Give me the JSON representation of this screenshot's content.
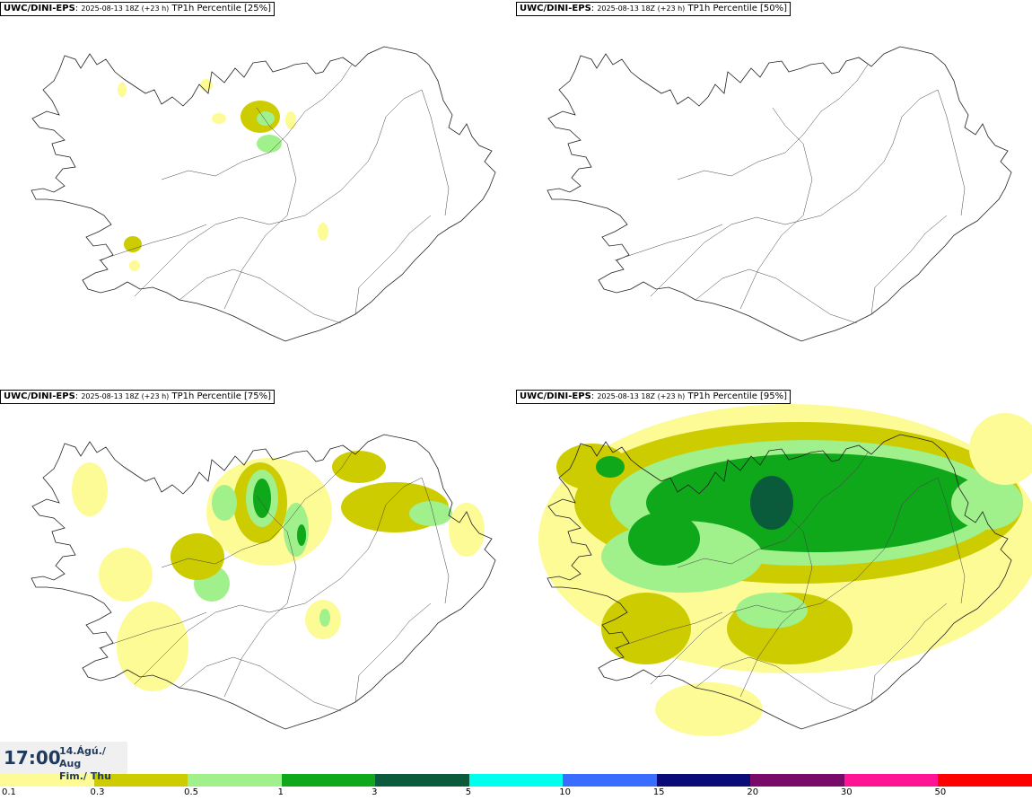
{
  "panels": [
    {
      "source": "UWC/DINI-EPS",
      "run": "2025-08-13 18Z (+23 h)",
      "field": "TP1h Percentile [25%]",
      "level": 1
    },
    {
      "source": "UWC/DINI-EPS",
      "run": "2025-08-13 18Z (+23 h)",
      "field": "TP1h Percentile [50%]",
      "level": 2
    },
    {
      "source": "UWC/DINI-EPS",
      "run": "2025-08-13 18Z (+23 h)",
      "field": "TP1h Percentile [75%]",
      "level": 3
    },
    {
      "source": "UWC/DINI-EPS",
      "run": "2025-08-13 18Z (+23 h)",
      "field": "TP1h Percentile [95%]",
      "level": 4
    }
  ],
  "valid_time": {
    "time": "17:00",
    "date": "14.Ágú./ Aug",
    "day": "Fim./ Thu"
  },
  "legend": {
    "colors": [
      "#fdfb96",
      "#cccc00",
      "#a0f08c",
      "#0ea81a",
      "#0a5a3c",
      "#00ffee",
      "#3a6cff",
      "#0a0a78",
      "#7a0a6a",
      "#ff1493",
      "#ff0000"
    ],
    "ticks": [
      "0.1",
      "0.3",
      "0.5",
      "1",
      "3",
      "5",
      "10",
      "15",
      "20",
      "30",
      "50"
    ]
  },
  "map_colors": {
    "light": "#fdfb96",
    "yellow": "#cccc00",
    "lightgreen": "#a0f08c",
    "green": "#0ea81a",
    "darkgreen": "#0a5a3c"
  }
}
